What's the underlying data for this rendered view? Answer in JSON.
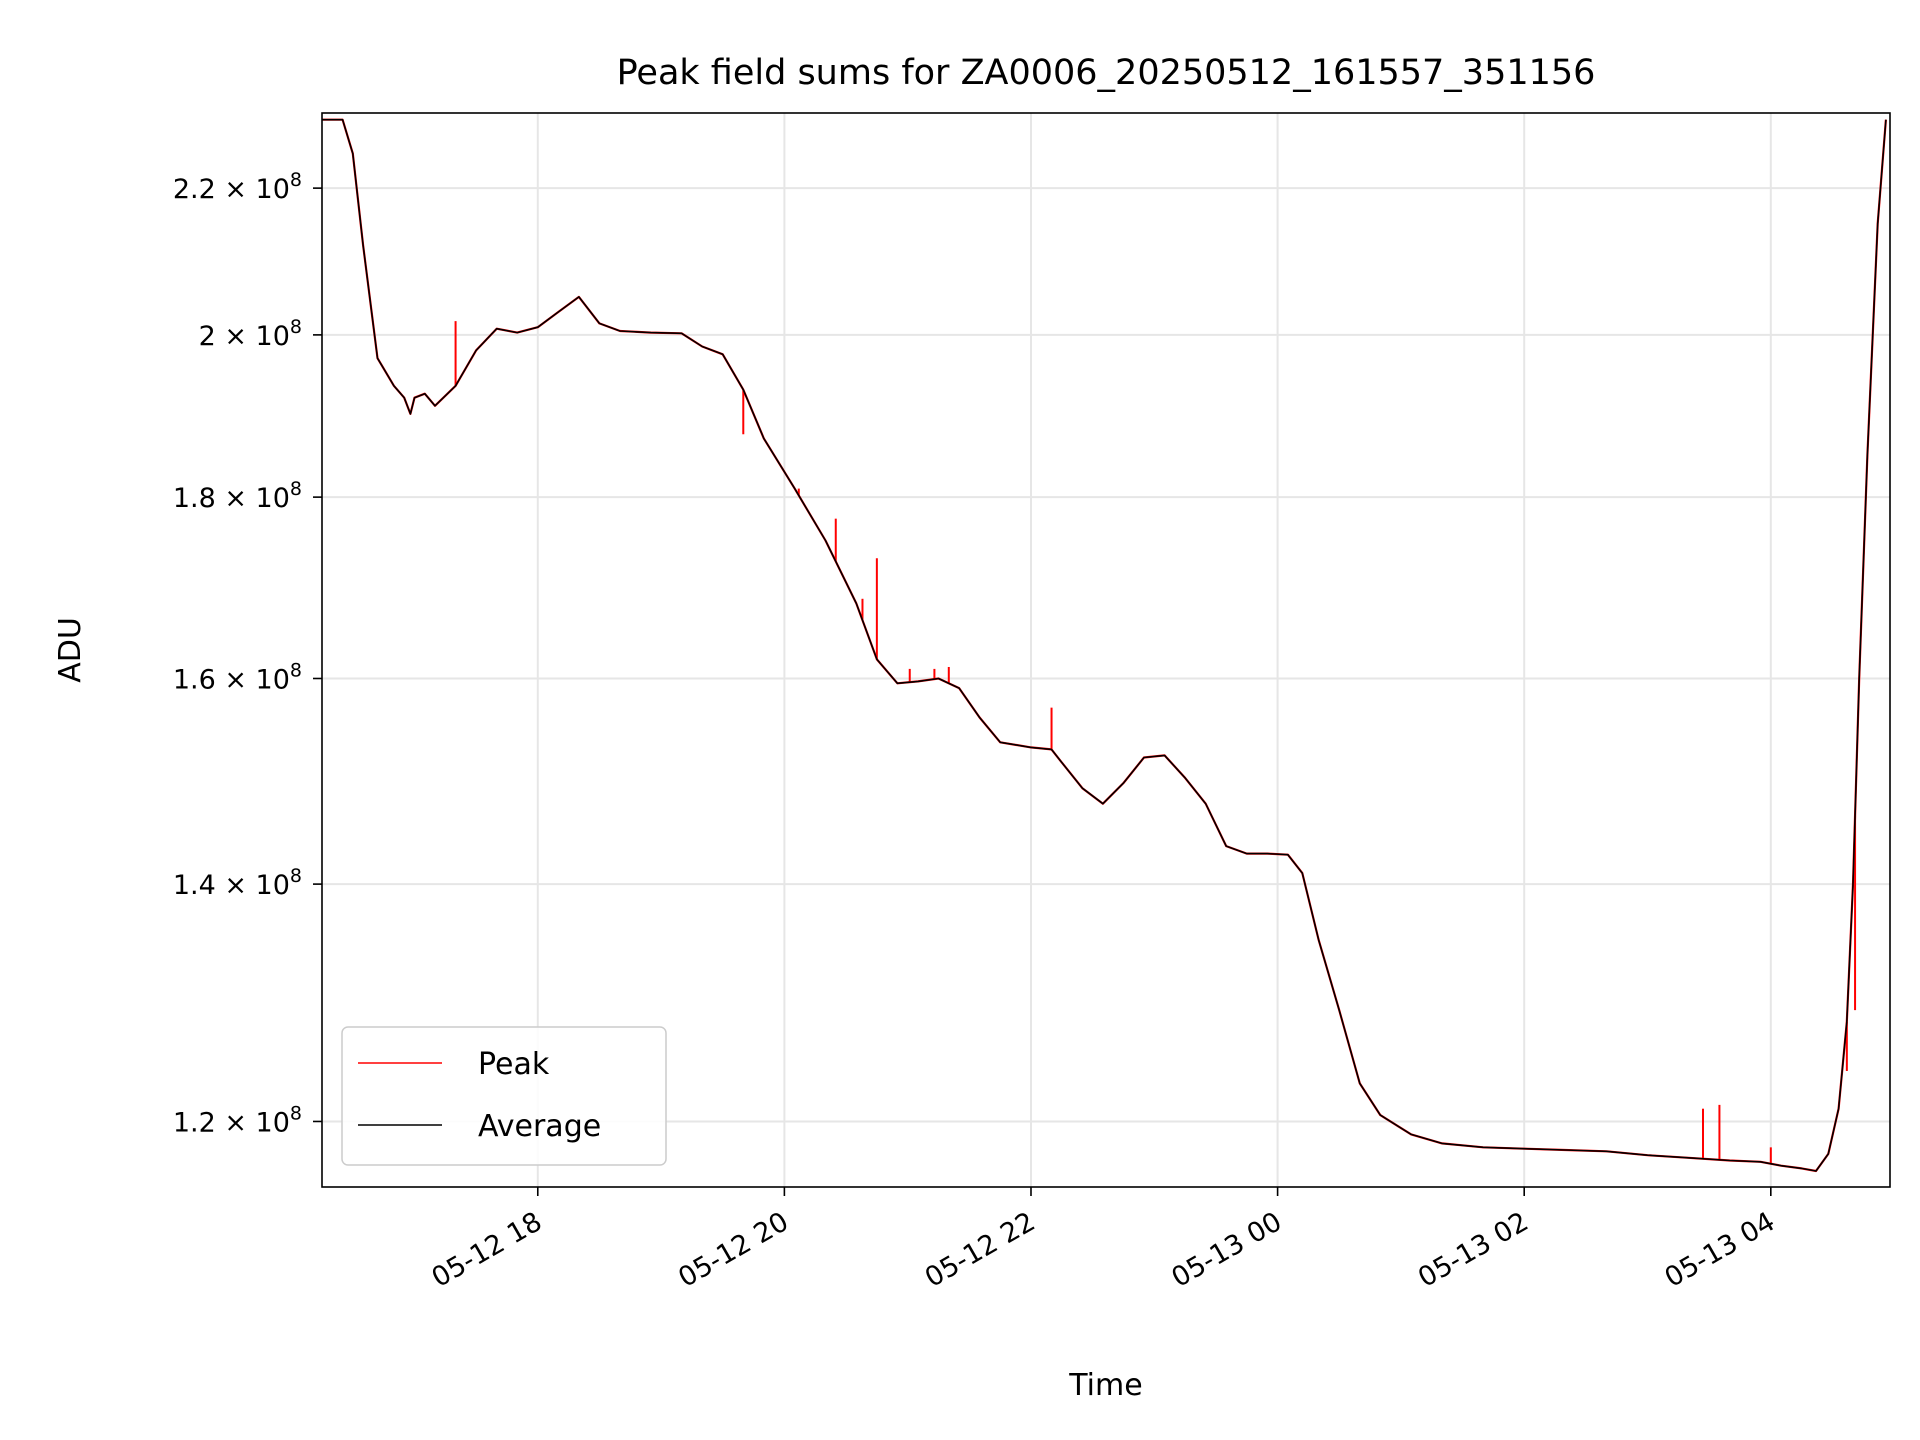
{
  "chart_data": {
    "type": "line",
    "title": "Peak field sums for ZA0006_20250512_161557_351156",
    "xlabel": "Time",
    "ylabel": "ADU",
    "y_scale": "log",
    "grid": true,
    "legend_position": "lower-left",
    "x_ticks": [
      {
        "t": "2025-05-12 18:00",
        "label": "05-12 18"
      },
      {
        "t": "2025-05-12 20:00",
        "label": "05-12 20"
      },
      {
        "t": "2025-05-12 22:00",
        "label": "05-12 22"
      },
      {
        "t": "2025-05-13 00:00",
        "label": "05-13 00"
      },
      {
        "t": "2025-05-13 02:00",
        "label": "05-13 02"
      },
      {
        "t": "2025-05-13 04:00",
        "label": "05-13 04"
      }
    ],
    "y_ticks": [
      {
        "v": 220000000,
        "mant": "2.2",
        "exp": "8"
      },
      {
        "v": 200000000,
        "mant": "2",
        "exp": "8"
      },
      {
        "v": 180000000,
        "mant": "1.8",
        "exp": "8"
      },
      {
        "v": 160000000,
        "mant": "1.6",
        "exp": "8"
      },
      {
        "v": 140000000,
        "mant": "1.4",
        "exp": "8"
      },
      {
        "v": 120000000,
        "mant": "1.2",
        "exp": "8"
      }
    ],
    "xlim": [
      "2025-05-12 16:15",
      "2025-05-13 04:58"
    ],
    "ylim": [
      115000000,
      231000000
    ],
    "series": [
      {
        "name": "Average",
        "color": "#000000",
        "points": [
          [
            "2025-05-12 16:15",
            230000000
          ],
          [
            "2025-05-12 16:25",
            230000000
          ],
          [
            "2025-05-12 16:30",
            225000000
          ],
          [
            "2025-05-12 16:35",
            212000000
          ],
          [
            "2025-05-12 16:42",
            197000000
          ],
          [
            "2025-05-12 16:50",
            193500000
          ],
          [
            "2025-05-12 16:55",
            192000000
          ],
          [
            "2025-05-12 16:58",
            190000000
          ],
          [
            "2025-05-12 17:00",
            192000000
          ],
          [
            "2025-05-12 17:05",
            192500000
          ],
          [
            "2025-05-12 17:10",
            191000000
          ],
          [
            "2025-05-12 17:20",
            193500000
          ],
          [
            "2025-05-12 17:30",
            198000000
          ],
          [
            "2025-05-12 17:40",
            200800000
          ],
          [
            "2025-05-12 17:50",
            200300000
          ],
          [
            "2025-05-12 18:00",
            201000000
          ],
          [
            "2025-05-12 18:10",
            203000000
          ],
          [
            "2025-05-12 18:20",
            205000000
          ],
          [
            "2025-05-12 18:30",
            201500000
          ],
          [
            "2025-05-12 18:40",
            200500000
          ],
          [
            "2025-05-12 18:55",
            200300000
          ],
          [
            "2025-05-12 19:10",
            200200000
          ],
          [
            "2025-05-12 19:20",
            198500000
          ],
          [
            "2025-05-12 19:30",
            197500000
          ],
          [
            "2025-05-12 19:40",
            193000000
          ],
          [
            "2025-05-12 19:50",
            187000000
          ],
          [
            "2025-05-12 20:05",
            181000000
          ],
          [
            "2025-05-12 20:20",
            175000000
          ],
          [
            "2025-05-12 20:35",
            168000000
          ],
          [
            "2025-05-12 20:45",
            162000000
          ],
          [
            "2025-05-12 20:55",
            159500000
          ],
          [
            "2025-05-12 21:05",
            159700000
          ],
          [
            "2025-05-12 21:15",
            160000000
          ],
          [
            "2025-05-12 21:25",
            159000000
          ],
          [
            "2025-05-12 21:35",
            156000000
          ],
          [
            "2025-05-12 21:45",
            153500000
          ],
          [
            "2025-05-12 22:00",
            153000000
          ],
          [
            "2025-05-12 22:10",
            152800000
          ],
          [
            "2025-05-12 22:15",
            151500000
          ],
          [
            "2025-05-12 22:25",
            149000000
          ],
          [
            "2025-05-12 22:35",
            147500000
          ],
          [
            "2025-05-12 22:45",
            149500000
          ],
          [
            "2025-05-12 22:55",
            152000000
          ],
          [
            "2025-05-12 23:05",
            152200000
          ],
          [
            "2025-05-12 23:15",
            150000000
          ],
          [
            "2025-05-12 23:25",
            147500000
          ],
          [
            "2025-05-12 23:35",
            143500000
          ],
          [
            "2025-05-12 23:45",
            142800000
          ],
          [
            "2025-05-12 23:55",
            142800000
          ],
          [
            "2025-05-13 00:05",
            142700000
          ],
          [
            "2025-05-13 00:12",
            141000000
          ],
          [
            "2025-05-13 00:20",
            135000000
          ],
          [
            "2025-05-13 00:30",
            129000000
          ],
          [
            "2025-05-13 00:40",
            123000000
          ],
          [
            "2025-05-13 00:50",
            120500000
          ],
          [
            "2025-05-13 01:05",
            119000000
          ],
          [
            "2025-05-13 01:20",
            118300000
          ],
          [
            "2025-05-13 01:40",
            118000000
          ],
          [
            "2025-05-13 02:00",
            117900000
          ],
          [
            "2025-05-13 02:20",
            117800000
          ],
          [
            "2025-05-13 02:40",
            117700000
          ],
          [
            "2025-05-13 03:00",
            117400000
          ],
          [
            "2025-05-13 03:20",
            117200000
          ],
          [
            "2025-05-13 03:40",
            117000000
          ],
          [
            "2025-05-13 03:55",
            116900000
          ],
          [
            "2025-05-13 04:05",
            116600000
          ],
          [
            "2025-05-13 04:15",
            116400000
          ],
          [
            "2025-05-13 04:22",
            116200000
          ],
          [
            "2025-05-13 04:28",
            117500000
          ],
          [
            "2025-05-13 04:33",
            121000000
          ],
          [
            "2025-05-13 04:37",
            128000000
          ],
          [
            "2025-05-13 04:40",
            140000000
          ],
          [
            "2025-05-13 04:43",
            160000000
          ],
          [
            "2025-05-13 04:47",
            185000000
          ],
          [
            "2025-05-13 04:52",
            215000000
          ],
          [
            "2025-05-13 04:56",
            230000000
          ]
        ]
      },
      {
        "name": "Peak",
        "color": "#ff0000",
        "spikes": [
          [
            "2025-05-12 17:20",
            201800000
          ],
          [
            "2025-05-12 19:40",
            187500000
          ],
          [
            "2025-05-12 20:07",
            181000000
          ],
          [
            "2025-05-12 20:25",
            177500000
          ],
          [
            "2025-05-12 20:38",
            168500000
          ],
          [
            "2025-05-12 20:45",
            173000000
          ],
          [
            "2025-05-12 21:01",
            161000000
          ],
          [
            "2025-05-12 21:13",
            161000000
          ],
          [
            "2025-05-12 21:20",
            161200000
          ],
          [
            "2025-05-12 22:10",
            157000000
          ],
          [
            "2025-05-13 03:27",
            121000000
          ],
          [
            "2025-05-13 03:35",
            121300000
          ],
          [
            "2025-05-13 04:00",
            118000000
          ],
          [
            "2025-05-13 04:37",
            124000000
          ],
          [
            "2025-05-13 04:41",
            129000000
          ]
        ]
      }
    ]
  }
}
